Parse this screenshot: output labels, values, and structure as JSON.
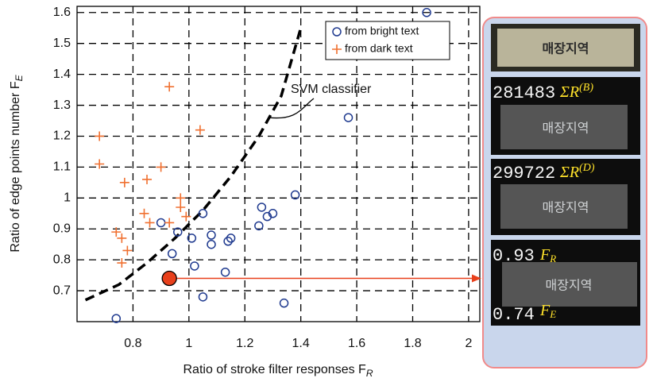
{
  "chart_data": {
    "type": "scatter",
    "x_label": {
      "text": "Ratio of stroke filter responses F",
      "sub": "R"
    },
    "y_label": {
      "text": "Ratio of edge points number F",
      "sub": "E"
    },
    "xlim": [
      0.6,
      2.04
    ],
    "ylim": [
      0.6,
      1.62
    ],
    "xticks": [
      0.8,
      1,
      1.2,
      1.4,
      1.6,
      1.8,
      2
    ],
    "yticks": [
      0.7,
      0.8,
      0.9,
      1,
      1.1,
      1.2,
      1.3,
      1.4,
      1.5,
      1.6
    ],
    "grid": true,
    "legend": "upper right",
    "series": [
      {
        "name": "from bright text",
        "color": "#1f3a8f",
        "marker": "circle",
        "x": [
          1.85,
          1.57,
          1.38,
          1.26,
          1.28,
          1.3,
          1.25,
          1.15,
          1.14,
          1.08,
          1.08,
          1.01,
          1.05,
          0.9,
          0.96,
          0.94,
          1.02,
          1.13,
          1.05,
          1.34,
          0.74
        ],
        "values": [
          1.6,
          1.26,
          1.01,
          0.97,
          0.94,
          0.95,
          0.91,
          0.87,
          0.86,
          0.88,
          0.85,
          0.87,
          0.95,
          0.92,
          0.89,
          0.82,
          0.78,
          0.76,
          0.68,
          0.66,
          0.61
        ]
      },
      {
        "name": "from dark text",
        "color": "#f07030",
        "marker": "plus",
        "x": [
          0.68,
          0.68,
          0.93,
          1.04,
          0.9,
          0.77,
          0.85,
          0.97,
          0.97,
          0.99,
          0.84,
          0.93,
          0.86,
          0.74,
          0.76,
          0.78,
          0.76
        ],
        "values": [
          1.2,
          1.11,
          1.36,
          1.22,
          1.1,
          1.05,
          1.06,
          1.0,
          0.97,
          0.94,
          0.95,
          0.92,
          0.92,
          0.89,
          0.87,
          0.83,
          0.79
        ]
      }
    ],
    "highlight": {
      "x": 0.93,
      "y": 0.74,
      "color": "#e8401c"
    },
    "classifier": {
      "label": "SVM classifier",
      "x": [
        0.63,
        0.75,
        0.85,
        0.95,
        1.05,
        1.15,
        1.25,
        1.33,
        1.4
      ],
      "y": [
        0.67,
        0.72,
        0.79,
        0.87,
        0.96,
        1.07,
        1.2,
        1.33,
        1.55
      ]
    }
  },
  "panel": {
    "word": "매장지역",
    "bright_sum": {
      "number": "281483",
      "symbol": "ΣR",
      "sup": "(B)"
    },
    "dark_sum": {
      "number": "299722",
      "symbol": "ΣR",
      "sup": "(D)"
    },
    "fr": {
      "number": "0.93",
      "symbol": "F",
      "sub": "R"
    },
    "fe": {
      "number": "0.74",
      "symbol": "F",
      "sub": "E"
    }
  }
}
